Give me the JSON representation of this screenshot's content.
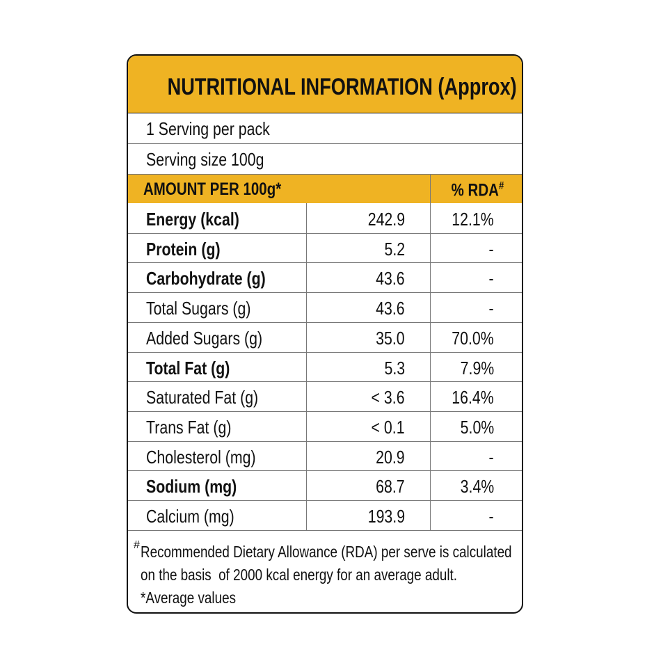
{
  "title": "NUTRITIONAL INFORMATION (Approx)",
  "servings": [
    "1 Serving per pack",
    "Serving size 100g"
  ],
  "header": {
    "amount": "AMOUNT PER 100g*",
    "rda": "% RDA",
    "rda_mark": "#"
  },
  "rows": [
    {
      "name": "Energy (kcal)",
      "bold": true,
      "amount": "242.9",
      "rda": "12.1%"
    },
    {
      "name": "Protein (g)",
      "bold": true,
      "amount": "5.2",
      "rda": "-"
    },
    {
      "name": "Carbohydrate (g)",
      "bold": true,
      "amount": "43.6",
      "rda": "-"
    },
    {
      "name": "Total Sugars (g)",
      "bold": false,
      "amount": "43.6",
      "rda": "-"
    },
    {
      "name": "Added Sugars (g)",
      "bold": false,
      "amount": "35.0",
      "rda": "70.0%"
    },
    {
      "name": "Total Fat (g)",
      "bold": true,
      "amount": "5.3",
      "rda": "7.9%"
    },
    {
      "name": "Saturated Fat (g)",
      "bold": false,
      "amount": "< 3.6",
      "rda": "16.4%"
    },
    {
      "name": "Trans Fat (g)",
      "bold": false,
      "amount": "< 0.1",
      "rda": "5.0%"
    },
    {
      "name": "Cholesterol (mg)",
      "bold": false,
      "amount": "20.9",
      "rda": "-"
    },
    {
      "name": "Sodium (mg)",
      "bold": true,
      "amount": "68.7",
      "rda": "3.4%"
    },
    {
      "name": "Calcium (mg)",
      "bold": false,
      "amount": "193.9",
      "rda": "-"
    }
  ],
  "footnote": {
    "mark": "#",
    "lines": [
      "Recommended Dietary Allowance (RDA) per serve is calculated",
      "on the basis  of 2000 kcal energy for an average adult."
    ],
    "average": "*Average values"
  }
}
